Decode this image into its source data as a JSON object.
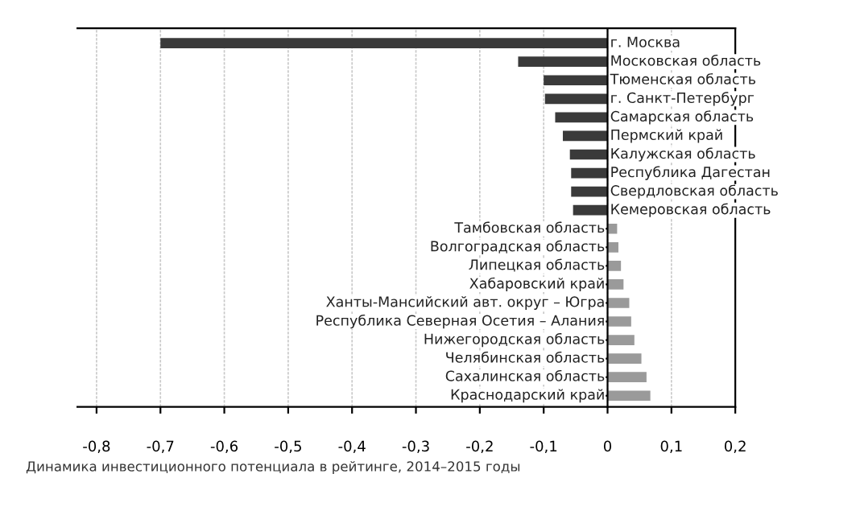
{
  "chart_data": {
    "type": "bar",
    "orientation": "horizontal",
    "categories": [
      "г. Москва",
      "Московская область",
      "Тюменская область",
      "г. Санкт-Петербург",
      "Самарская область",
      "Пермский край",
      "Калужская область",
      "Республика Дагестан",
      "Свердловская область",
      "Кемеровская область",
      "Тамбовская область",
      "Волгоградская область",
      "Липецкая область",
      "Хабаровский край",
      "Ханты-Мансийский авт. округ – Югра",
      "Республика Северная Осетия – Алания",
      "Нижегородская область",
      "Челябинская область",
      "Сахалинская область",
      "Краснодарский край"
    ],
    "values": [
      -0.7,
      -0.14,
      -0.1,
      -0.098,
      -0.082,
      -0.07,
      -0.059,
      -0.057,
      -0.057,
      -0.054,
      0.015,
      0.017,
      0.021,
      0.025,
      0.034,
      0.037,
      0.042,
      0.053,
      0.061,
      0.067
    ],
    "colors": [
      "#3a3a3a",
      "#3a3a3a",
      "#3a3a3a",
      "#3a3a3a",
      "#3a3a3a",
      "#3a3a3a",
      "#3a3a3a",
      "#3a3a3a",
      "#3a3a3a",
      "#3a3a3a",
      "#9a9a9a",
      "#9a9a9a",
      "#9a9a9a",
      "#9a9a9a",
      "#9a9a9a",
      "#9a9a9a",
      "#9a9a9a",
      "#9a9a9a",
      "#9a9a9a",
      "#9a9a9a"
    ],
    "xlim": [
      -0.83,
      0.2
    ],
    "xticks": [
      {
        "value": -0.8,
        "label": "-0,8"
      },
      {
        "value": -0.7,
        "label": "-0,7"
      },
      {
        "value": -0.6,
        "label": "-0,6"
      },
      {
        "value": -0.5,
        "label": "-0,5"
      },
      {
        "value": -0.4,
        "label": "-0,4"
      },
      {
        "value": -0.3,
        "label": "-0,3"
      },
      {
        "value": -0.2,
        "label": "-0,2"
      },
      {
        "value": -0.1,
        "label": "-0,1"
      },
      {
        "value": 0,
        "label": "0"
      },
      {
        "value": 0.1,
        "label": "0,1"
      },
      {
        "value": 0.2,
        "label": "0,2"
      }
    ],
    "grid": "x",
    "legend": false,
    "annotations": [
      "Динамика инвестиционного потенциала в рейтинге, 2014–2015 годы"
    ]
  }
}
